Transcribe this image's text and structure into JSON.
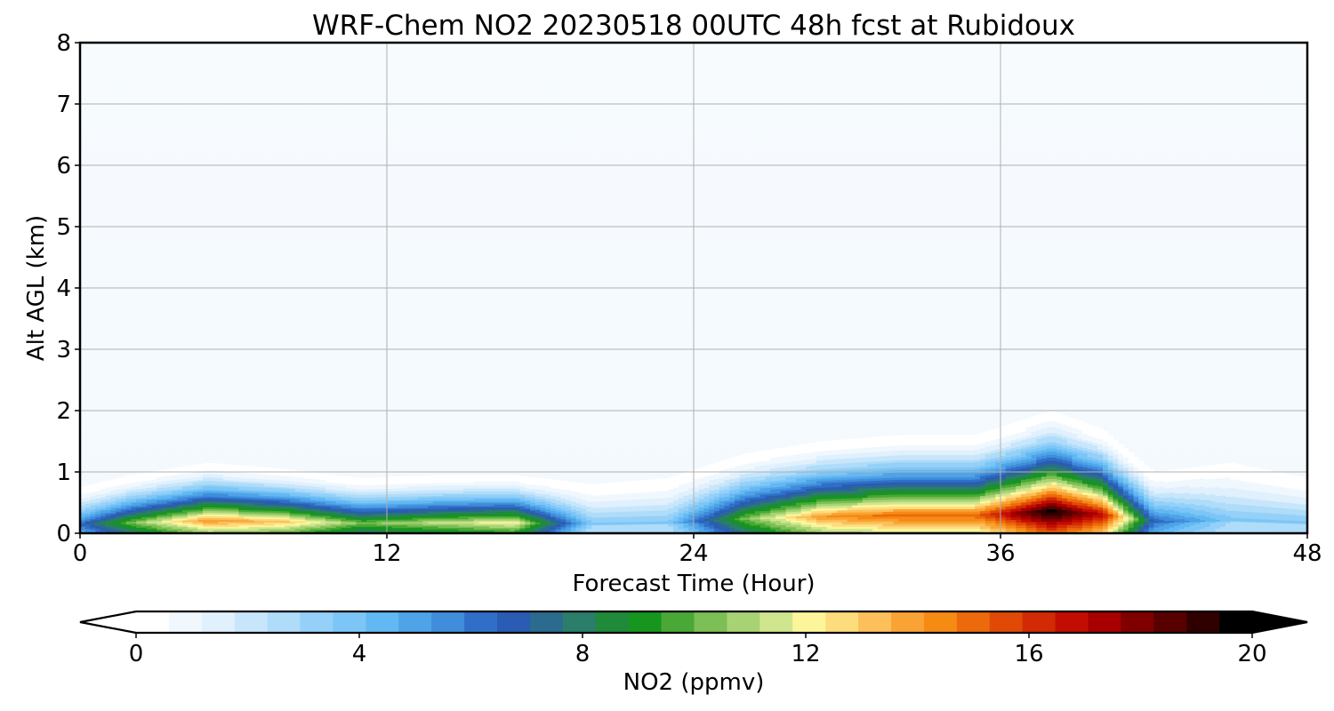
{
  "chart_data": {
    "type": "contour",
    "title": "WRF-Chem NO2  20230518 00UTC 48h fcst at Rubidoux",
    "xlabel": "Forecast Time (Hour)",
    "ylabel": "Alt AGL (km)",
    "xlim": [
      0,
      48
    ],
    "ylim": [
      0,
      8
    ],
    "xticks": [
      0,
      12,
      24,
      36,
      48
    ],
    "yticks": [
      0,
      1,
      2,
      3,
      4,
      5,
      6,
      7,
      8
    ],
    "grid": true,
    "colorbar": {
      "label": "NO2  (ppmv)",
      "range": [
        0,
        20
      ],
      "ticks": [
        0,
        4,
        8,
        12,
        16,
        20
      ],
      "extend": "both",
      "colors": [
        "#ffffff",
        "#f0f8fe",
        "#e0f0fd",
        "#c8e6fb",
        "#aedcf9",
        "#94d0f8",
        "#7cc6f7",
        "#62b8f2",
        "#4fa3e7",
        "#3f8ddb",
        "#2f6fc8",
        "#2a5cb4",
        "#2b6b8e",
        "#2a7e6a",
        "#1f8a3a",
        "#16961f",
        "#4aa836",
        "#7cbf55",
        "#a8d374",
        "#cfe68f",
        "#fdf59a",
        "#fddc7c",
        "#fcbf5a",
        "#f9a334",
        "#f68b14",
        "#ec6a0c",
        "#e04a06",
        "#d22a04",
        "#c40d02",
        "#a80000",
        "#800000",
        "#580000",
        "#300000",
        "#000000"
      ]
    },
    "profiles": [
      {
        "hour": 0,
        "top_km": 0.75,
        "peak_ppmv": 6
      },
      {
        "hour": 2,
        "top_km": 0.95,
        "peak_ppmv": 10
      },
      {
        "hour": 5,
        "top_km": 1.15,
        "peak_ppmv": 14
      },
      {
        "hour": 8,
        "top_km": 1.05,
        "peak_ppmv": 13
      },
      {
        "hour": 11,
        "top_km": 0.9,
        "peak_ppmv": 10
      },
      {
        "hour": 14,
        "top_km": 0.95,
        "peak_ppmv": 11
      },
      {
        "hour": 17,
        "top_km": 0.95,
        "peak_ppmv": 12
      },
      {
        "hour": 20,
        "top_km": 0.8,
        "peak_ppmv": 3
      },
      {
        "hour": 23,
        "top_km": 0.9,
        "peak_ppmv": 3
      },
      {
        "hour": 26,
        "top_km": 1.3,
        "peak_ppmv": 10
      },
      {
        "hour": 29,
        "top_km": 1.5,
        "peak_ppmv": 14
      },
      {
        "hour": 32,
        "top_km": 1.6,
        "peak_ppmv": 15
      },
      {
        "hour": 35,
        "top_km": 1.6,
        "peak_ppmv": 15
      },
      {
        "hour": 38,
        "top_km": 2.0,
        "peak_ppmv": 20
      },
      {
        "hour": 40,
        "top_km": 1.7,
        "peak_ppmv": 17
      },
      {
        "hour": 42,
        "top_km": 1.0,
        "peak_ppmv": 6
      },
      {
        "hour": 45,
        "top_km": 1.15,
        "peak_ppmv": 3
      },
      {
        "hour": 48,
        "top_km": 0.9,
        "peak_ppmv": 3
      }
    ]
  }
}
